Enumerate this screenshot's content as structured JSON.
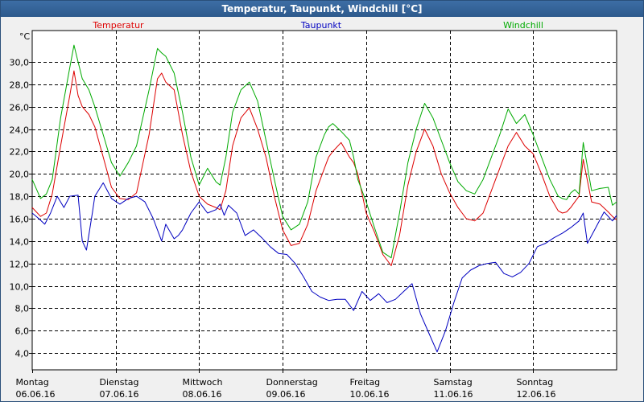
{
  "window": {
    "title": "Temperatur, Taupunkt, Windchill [°C]"
  },
  "colors": {
    "temperatur": "#dd0000",
    "taupunkt": "#0000c0",
    "windchill": "#00aa00"
  },
  "chart_data": {
    "type": "line",
    "title": "Temperatur, Taupunkt, Windchill [°C]",
    "yunit": "°C",
    "ylim": [
      2.5,
      32.8
    ],
    "yticks": [
      "30,0",
      "28,0",
      "26,0",
      "24,0",
      "22,0",
      "20,0",
      "18,0",
      "16,0",
      "14,0",
      "12,0",
      "10,0",
      "8,0",
      "6,0",
      "4,0"
    ],
    "ytick_values": [
      30,
      28,
      26,
      24,
      22,
      20,
      18,
      16,
      14,
      12,
      10,
      8,
      6,
      4
    ],
    "xlim": [
      0,
      7
    ],
    "grid": true,
    "xticks": [
      {
        "day": "Montag",
        "date": "06.06.16"
      },
      {
        "day": "Dienstag",
        "date": "07.06.16"
      },
      {
        "day": "Mittwoch",
        "date": "08.06.16"
      },
      {
        "day": "Donnerstag",
        "date": "09.06.16"
      },
      {
        "day": "Freitag",
        "date": "10.06.16"
      },
      {
        "day": "Samstag",
        "date": "11.06.16"
      },
      {
        "day": "Sonntag",
        "date": "12.06.16"
      }
    ],
    "series": [
      {
        "name": "Temperatur",
        "x": [
          0,
          0.1,
          0.17,
          0.24,
          0.34,
          0.45,
          0.5,
          0.55,
          0.6,
          0.68,
          0.75,
          0.85,
          0.95,
          1.05,
          1.15,
          1.25,
          1.4,
          1.5,
          1.55,
          1.6,
          1.7,
          1.8,
          1.9,
          2.0,
          2.1,
          2.2,
          2.25,
          2.32,
          2.4,
          2.5,
          2.6,
          2.7,
          2.8,
          2.9,
          3.0,
          3.1,
          3.2,
          3.3,
          3.4,
          3.5,
          3.55,
          3.6,
          3.7,
          3.8,
          3.85,
          3.9,
          4.0,
          4.1,
          4.2,
          4.3,
          4.4,
          4.5,
          4.6,
          4.7,
          4.8,
          4.9,
          5.0,
          5.1,
          5.2,
          5.3,
          5.4,
          5.5,
          5.6,
          5.7,
          5.8,
          5.9,
          6.0,
          6.1,
          6.2,
          6.3,
          6.35,
          6.4,
          6.45,
          6.5,
          6.55,
          6.6,
          6.7,
          6.8,
          6.9,
          6.95,
          7.0
        ],
        "y": [
          17.0,
          16.2,
          16.5,
          18.2,
          22.5,
          27.0,
          29.2,
          27.0,
          26.0,
          25.3,
          24.2,
          21.5,
          18.8,
          17.8,
          17.7,
          18.3,
          23.5,
          28.5,
          29.0,
          28.2,
          27.5,
          23.5,
          20.2,
          18.0,
          17.3,
          17.0,
          16.8,
          18.5,
          22.5,
          25.0,
          25.9,
          24.0,
          21.5,
          18.0,
          15.0,
          13.6,
          13.8,
          15.5,
          18.5,
          20.5,
          21.5,
          22.0,
          22.8,
          21.5,
          21.0,
          20.0,
          16.5,
          14.8,
          12.8,
          11.8,
          14.5,
          19.0,
          22.0,
          24.0,
          22.5,
          20.0,
          18.3,
          17.0,
          16.0,
          15.8,
          16.5,
          18.5,
          20.5,
          22.5,
          23.7,
          22.5,
          21.8,
          20.0,
          18.0,
          16.7,
          16.5,
          16.6,
          17.0,
          17.5,
          18.0,
          21.3,
          17.5,
          17.3,
          16.6,
          16.2,
          15.9
        ]
      },
      {
        "name": "Taupunkt",
        "x": [
          0,
          0.08,
          0.15,
          0.22,
          0.3,
          0.38,
          0.45,
          0.55,
          0.6,
          0.65,
          0.72,
          0.75,
          0.85,
          0.95,
          1.05,
          1.15,
          1.25,
          1.35,
          1.45,
          1.5,
          1.55,
          1.6,
          1.7,
          1.75,
          1.8,
          1.9,
          2.0,
          2.1,
          2.2,
          2.25,
          2.3,
          2.35,
          2.45,
          2.55,
          2.65,
          2.75,
          2.85,
          2.95,
          3.05,
          3.15,
          3.25,
          3.35,
          3.45,
          3.55,
          3.65,
          3.75,
          3.85,
          3.95,
          4.05,
          4.15,
          4.25,
          4.35,
          4.45,
          4.55,
          4.65,
          4.75,
          4.85,
          4.95,
          5.05,
          5.15,
          5.25,
          5.35,
          5.45,
          5.55,
          5.65,
          5.75,
          5.85,
          5.95,
          6.05,
          6.15,
          6.25,
          6.35,
          6.45,
          6.55,
          6.6,
          6.65,
          6.75,
          6.85,
          6.95,
          7.0
        ],
        "y": [
          16.5,
          16.0,
          15.5,
          16.5,
          18.0,
          17.0,
          18.0,
          18.1,
          14.0,
          13.2,
          16.5,
          18.0,
          19.2,
          17.8,
          17.3,
          17.8,
          18.0,
          17.5,
          16.0,
          15.0,
          14.0,
          15.5,
          14.2,
          14.5,
          15.0,
          16.5,
          17.5,
          16.5,
          16.8,
          17.3,
          16.3,
          17.2,
          16.5,
          14.5,
          15.0,
          14.3,
          13.5,
          12.9,
          12.8,
          12.0,
          10.8,
          9.5,
          9.0,
          8.7,
          8.8,
          8.8,
          7.8,
          9.5,
          8.7,
          9.3,
          8.5,
          8.8,
          9.5,
          10.2,
          7.5,
          5.8,
          4.1,
          6.0,
          8.5,
          10.7,
          11.4,
          11.8,
          12.0,
          12.1,
          11.1,
          10.8,
          11.2,
          12.0,
          13.5,
          13.8,
          14.3,
          14.7,
          15.2,
          15.8,
          16.5,
          13.8,
          15.2,
          16.6,
          15.8,
          16.3
        ]
      },
      {
        "name": "Windchill",
        "x": [
          0,
          0.1,
          0.17,
          0.24,
          0.34,
          0.45,
          0.5,
          0.55,
          0.6,
          0.68,
          0.75,
          0.85,
          0.95,
          1.05,
          1.15,
          1.25,
          1.4,
          1.5,
          1.55,
          1.6,
          1.7,
          1.8,
          1.9,
          2.0,
          2.1,
          2.2,
          2.25,
          2.32,
          2.4,
          2.5,
          2.6,
          2.7,
          2.8,
          2.9,
          3.0,
          3.1,
          3.2,
          3.3,
          3.4,
          3.5,
          3.55,
          3.6,
          3.7,
          3.8,
          3.85,
          3.9,
          4.0,
          4.1,
          4.2,
          4.3,
          4.4,
          4.5,
          4.6,
          4.7,
          4.8,
          4.9,
          5.0,
          5.1,
          5.2,
          5.3,
          5.4,
          5.5,
          5.6,
          5.7,
          5.8,
          5.9,
          6.0,
          6.1,
          6.2,
          6.3,
          6.35,
          6.4,
          6.45,
          6.5,
          6.55,
          6.6,
          6.7,
          6.8,
          6.9,
          6.95,
          7.0
        ],
        "y": [
          19.5,
          17.8,
          18.2,
          19.5,
          25.0,
          29.5,
          31.5,
          30.0,
          28.5,
          27.5,
          26.0,
          23.5,
          21.0,
          19.8,
          21.0,
          22.5,
          27.5,
          31.2,
          30.8,
          30.5,
          29.0,
          25.5,
          21.5,
          19.0,
          20.5,
          19.3,
          19.0,
          21.5,
          25.5,
          27.5,
          28.2,
          26.5,
          23.0,
          19.5,
          16.2,
          15.0,
          15.5,
          17.5,
          21.5,
          23.5,
          24.2,
          24.5,
          23.8,
          23.0,
          21.5,
          19.5,
          17.5,
          15.2,
          13.0,
          12.5,
          16.5,
          21.0,
          24.0,
          26.3,
          25.0,
          23.0,
          21.0,
          19.3,
          18.5,
          18.2,
          19.5,
          21.5,
          23.5,
          25.8,
          24.5,
          25.3,
          23.5,
          21.5,
          19.5,
          18.0,
          17.8,
          17.7,
          18.3,
          18.6,
          18.2,
          22.8,
          18.5,
          18.7,
          18.8,
          17.2,
          17.5
        ]
      }
    ]
  }
}
